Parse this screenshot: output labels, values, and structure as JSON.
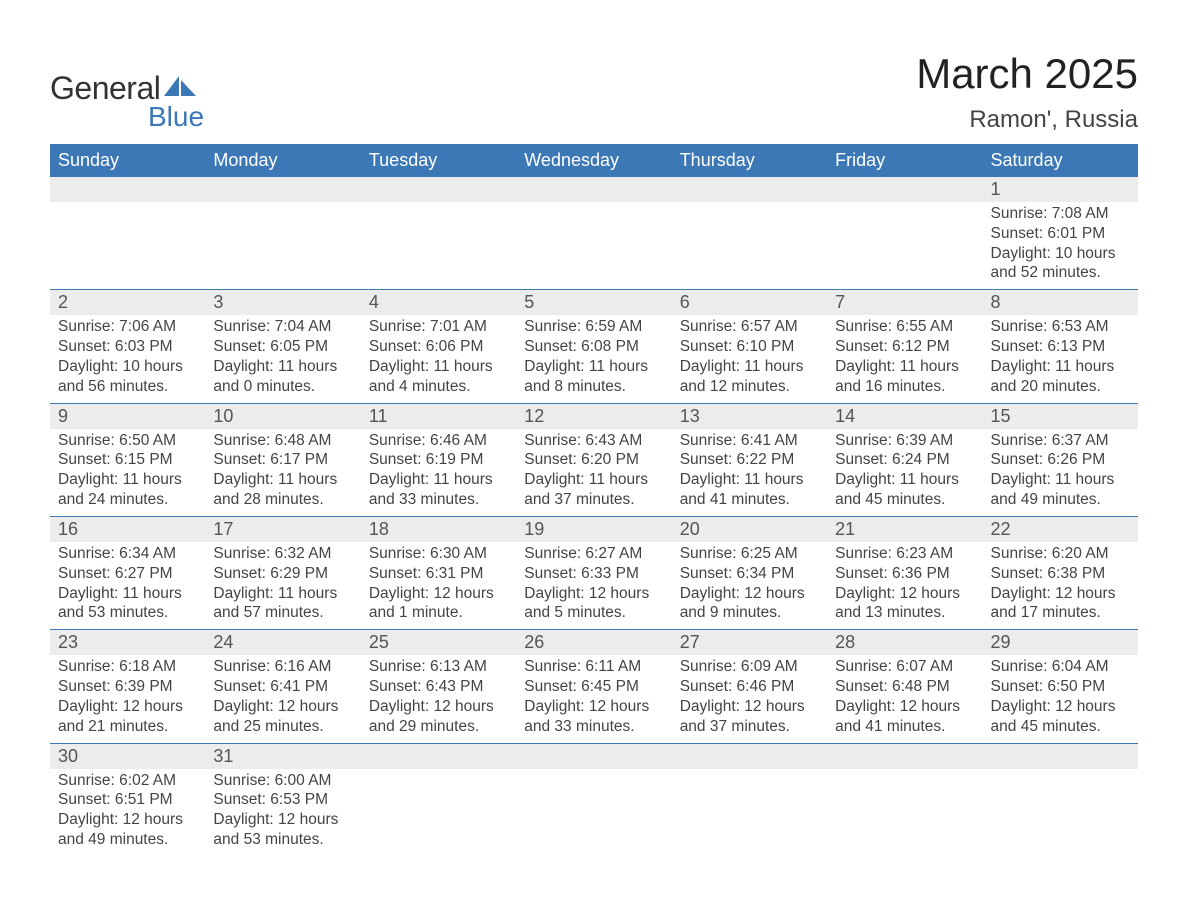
{
  "logo": {
    "text_general": "General",
    "text_blue": "Blue",
    "shape_color": "#3b78b5"
  },
  "title": "March 2025",
  "location": "Ramon', Russia",
  "colors": {
    "header_bg": "#3b78b5",
    "header_text": "#ffffff",
    "daynum_bg": "#ececec",
    "daynum_text": "#555555",
    "body_text": "#444444",
    "row_border": "#3b78b5",
    "page_bg": "#ffffff"
  },
  "typography": {
    "title_fontsize": 42,
    "location_fontsize": 24,
    "header_fontsize": 18,
    "daynum_fontsize": 18,
    "detail_fontsize": 15.5,
    "font_family": "Arial"
  },
  "day_headers": [
    "Sunday",
    "Monday",
    "Tuesday",
    "Wednesday",
    "Thursday",
    "Friday",
    "Saturday"
  ],
  "weeks": [
    [
      null,
      null,
      null,
      null,
      null,
      null,
      {
        "n": "1",
        "sr": "Sunrise: 7:08 AM",
        "ss": "Sunset: 6:01 PM",
        "dl": "Daylight: 10 hours and 52 minutes."
      }
    ],
    [
      {
        "n": "2",
        "sr": "Sunrise: 7:06 AM",
        "ss": "Sunset: 6:03 PM",
        "dl": "Daylight: 10 hours and 56 minutes."
      },
      {
        "n": "3",
        "sr": "Sunrise: 7:04 AM",
        "ss": "Sunset: 6:05 PM",
        "dl": "Daylight: 11 hours and 0 minutes."
      },
      {
        "n": "4",
        "sr": "Sunrise: 7:01 AM",
        "ss": "Sunset: 6:06 PM",
        "dl": "Daylight: 11 hours and 4 minutes."
      },
      {
        "n": "5",
        "sr": "Sunrise: 6:59 AM",
        "ss": "Sunset: 6:08 PM",
        "dl": "Daylight: 11 hours and 8 minutes."
      },
      {
        "n": "6",
        "sr": "Sunrise: 6:57 AM",
        "ss": "Sunset: 6:10 PM",
        "dl": "Daylight: 11 hours and 12 minutes."
      },
      {
        "n": "7",
        "sr": "Sunrise: 6:55 AM",
        "ss": "Sunset: 6:12 PM",
        "dl": "Daylight: 11 hours and 16 minutes."
      },
      {
        "n": "8",
        "sr": "Sunrise: 6:53 AM",
        "ss": "Sunset: 6:13 PM",
        "dl": "Daylight: 11 hours and 20 minutes."
      }
    ],
    [
      {
        "n": "9",
        "sr": "Sunrise: 6:50 AM",
        "ss": "Sunset: 6:15 PM",
        "dl": "Daylight: 11 hours and 24 minutes."
      },
      {
        "n": "10",
        "sr": "Sunrise: 6:48 AM",
        "ss": "Sunset: 6:17 PM",
        "dl": "Daylight: 11 hours and 28 minutes."
      },
      {
        "n": "11",
        "sr": "Sunrise: 6:46 AM",
        "ss": "Sunset: 6:19 PM",
        "dl": "Daylight: 11 hours and 33 minutes."
      },
      {
        "n": "12",
        "sr": "Sunrise: 6:43 AM",
        "ss": "Sunset: 6:20 PM",
        "dl": "Daylight: 11 hours and 37 minutes."
      },
      {
        "n": "13",
        "sr": "Sunrise: 6:41 AM",
        "ss": "Sunset: 6:22 PM",
        "dl": "Daylight: 11 hours and 41 minutes."
      },
      {
        "n": "14",
        "sr": "Sunrise: 6:39 AM",
        "ss": "Sunset: 6:24 PM",
        "dl": "Daylight: 11 hours and 45 minutes."
      },
      {
        "n": "15",
        "sr": "Sunrise: 6:37 AM",
        "ss": "Sunset: 6:26 PM",
        "dl": "Daylight: 11 hours and 49 minutes."
      }
    ],
    [
      {
        "n": "16",
        "sr": "Sunrise: 6:34 AM",
        "ss": "Sunset: 6:27 PM",
        "dl": "Daylight: 11 hours and 53 minutes."
      },
      {
        "n": "17",
        "sr": "Sunrise: 6:32 AM",
        "ss": "Sunset: 6:29 PM",
        "dl": "Daylight: 11 hours and 57 minutes."
      },
      {
        "n": "18",
        "sr": "Sunrise: 6:30 AM",
        "ss": "Sunset: 6:31 PM",
        "dl": "Daylight: 12 hours and 1 minute."
      },
      {
        "n": "19",
        "sr": "Sunrise: 6:27 AM",
        "ss": "Sunset: 6:33 PM",
        "dl": "Daylight: 12 hours and 5 minutes."
      },
      {
        "n": "20",
        "sr": "Sunrise: 6:25 AM",
        "ss": "Sunset: 6:34 PM",
        "dl": "Daylight: 12 hours and 9 minutes."
      },
      {
        "n": "21",
        "sr": "Sunrise: 6:23 AM",
        "ss": "Sunset: 6:36 PM",
        "dl": "Daylight: 12 hours and 13 minutes."
      },
      {
        "n": "22",
        "sr": "Sunrise: 6:20 AM",
        "ss": "Sunset: 6:38 PM",
        "dl": "Daylight: 12 hours and 17 minutes."
      }
    ],
    [
      {
        "n": "23",
        "sr": "Sunrise: 6:18 AM",
        "ss": "Sunset: 6:39 PM",
        "dl": "Daylight: 12 hours and 21 minutes."
      },
      {
        "n": "24",
        "sr": "Sunrise: 6:16 AM",
        "ss": "Sunset: 6:41 PM",
        "dl": "Daylight: 12 hours and 25 minutes."
      },
      {
        "n": "25",
        "sr": "Sunrise: 6:13 AM",
        "ss": "Sunset: 6:43 PM",
        "dl": "Daylight: 12 hours and 29 minutes."
      },
      {
        "n": "26",
        "sr": "Sunrise: 6:11 AM",
        "ss": "Sunset: 6:45 PM",
        "dl": "Daylight: 12 hours and 33 minutes."
      },
      {
        "n": "27",
        "sr": "Sunrise: 6:09 AM",
        "ss": "Sunset: 6:46 PM",
        "dl": "Daylight: 12 hours and 37 minutes."
      },
      {
        "n": "28",
        "sr": "Sunrise: 6:07 AM",
        "ss": "Sunset: 6:48 PM",
        "dl": "Daylight: 12 hours and 41 minutes."
      },
      {
        "n": "29",
        "sr": "Sunrise: 6:04 AM",
        "ss": "Sunset: 6:50 PM",
        "dl": "Daylight: 12 hours and 45 minutes."
      }
    ],
    [
      {
        "n": "30",
        "sr": "Sunrise: 6:02 AM",
        "ss": "Sunset: 6:51 PM",
        "dl": "Daylight: 12 hours and 49 minutes."
      },
      {
        "n": "31",
        "sr": "Sunrise: 6:00 AM",
        "ss": "Sunset: 6:53 PM",
        "dl": "Daylight: 12 hours and 53 minutes."
      },
      null,
      null,
      null,
      null,
      null
    ]
  ]
}
